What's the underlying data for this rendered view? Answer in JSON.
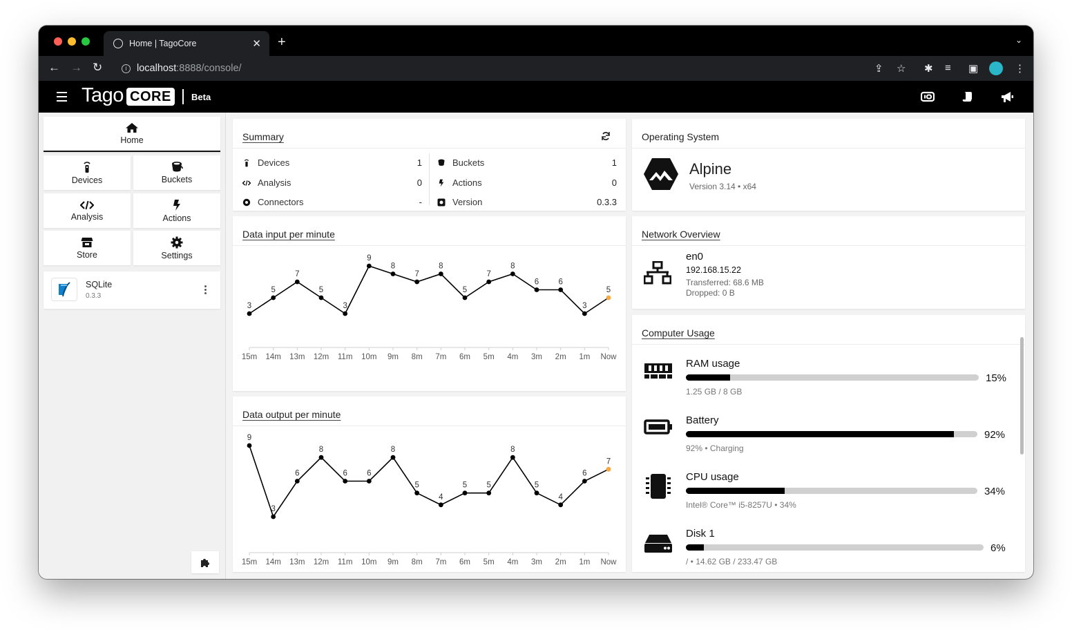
{
  "browser": {
    "tab_title": "Home | TagoCore",
    "url_host": "localhost",
    "url_path": ":8888/console/"
  },
  "app": {
    "logo_text": "Tago",
    "logo_badge": "CORE",
    "beta_label": "Beta"
  },
  "sidebar": {
    "home_label": "Home",
    "items": [
      {
        "label": "Devices",
        "icon": "device-icon"
      },
      {
        "label": "Buckets",
        "icon": "bucket-icon"
      },
      {
        "label": "Analysis",
        "icon": "code-icon"
      },
      {
        "label": "Actions",
        "icon": "bolt-icon"
      },
      {
        "label": "Store",
        "icon": "store-icon"
      },
      {
        "label": "Settings",
        "icon": "gear-icon"
      }
    ],
    "plugin": {
      "name": "SQLite",
      "version": "0.3.3"
    }
  },
  "summary": {
    "title": "Summary",
    "left": [
      {
        "label": "Devices",
        "value": "1"
      },
      {
        "label": "Analysis",
        "value": "0"
      },
      {
        "label": "Connectors",
        "value": "-"
      }
    ],
    "right": [
      {
        "label": "Buckets",
        "value": "1"
      },
      {
        "label": "Actions",
        "value": "0"
      },
      {
        "label": "Version",
        "value": "0.3.3"
      }
    ]
  },
  "os": {
    "title": "Operating System",
    "name": "Alpine",
    "version": "Version 3.14 • x64"
  },
  "network": {
    "title": "Network Overview",
    "interface": "en0",
    "ip": "192.168.15.22",
    "transferred": "Transferred: 68.6 MB",
    "dropped": "Dropped: 0 B"
  },
  "usage": {
    "title": "Computer Usage",
    "items": [
      {
        "name": "RAM usage",
        "percent": 15,
        "percent_label": "15%",
        "detail": "1.25 GB / 8 GB"
      },
      {
        "name": "Battery",
        "percent": 92,
        "percent_label": "92%",
        "detail": "92% • Charging"
      },
      {
        "name": "CPU usage",
        "percent": 34,
        "percent_label": "34%",
        "detail": "Intel® Core™ i5-8257U • 34%"
      },
      {
        "name": "Disk 1",
        "percent": 6,
        "percent_label": "6%",
        "detail": "/ • 14.62 GB / 233.47 GB"
      }
    ]
  },
  "chart_data": [
    {
      "type": "line",
      "title": "Data input per minute",
      "categories": [
        "15m",
        "14m",
        "13m",
        "12m",
        "11m",
        "10m",
        "9m",
        "8m",
        "7m",
        "6m",
        "5m",
        "4m",
        "3m",
        "2m",
        "1m",
        "Now"
      ],
      "values": [
        3,
        5,
        7,
        5,
        3,
        9,
        8,
        7,
        8,
        5,
        7,
        8,
        6,
        6,
        3,
        5
      ],
      "ylim": [
        3,
        9
      ],
      "last_point_color": "#f5a742"
    },
    {
      "type": "line",
      "title": "Data output per minute",
      "categories": [
        "15m",
        "14m",
        "13m",
        "12m",
        "11m",
        "10m",
        "9m",
        "8m",
        "7m",
        "6m",
        "5m",
        "4m",
        "3m",
        "2m",
        "1m",
        "Now"
      ],
      "values": [
        9,
        3,
        6,
        8,
        6,
        6,
        8,
        5,
        4,
        5,
        5,
        8,
        5,
        4,
        6,
        7
      ],
      "ylim": [
        3,
        9
      ],
      "last_point_color": "#f5a742"
    }
  ]
}
